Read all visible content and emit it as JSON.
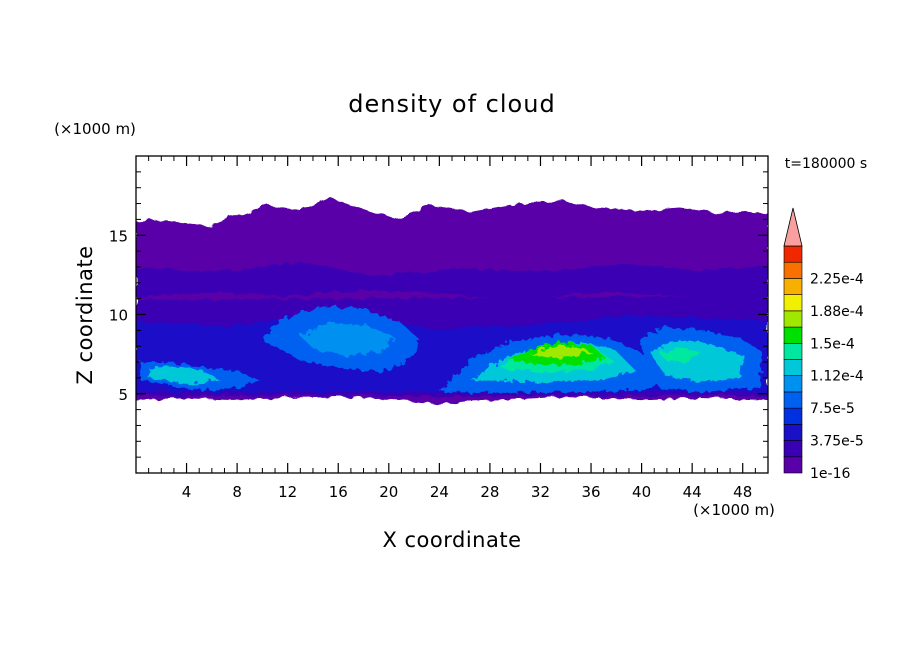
{
  "chart_data": {
    "type": "heatmap",
    "title": "density of cloud",
    "xlabel": "X coordinate",
    "ylabel": "Z coordinate",
    "x_unit": "(×1000 m)",
    "y_unit": "(×1000 m)",
    "time_label": "t=180000 s",
    "xlim": [
      0,
      50
    ],
    "ylim": [
      0,
      20
    ],
    "x_ticks": [
      4,
      8,
      12,
      16,
      20,
      24,
      28,
      32,
      36,
      40,
      44,
      48
    ],
    "y_ticks": [
      5,
      10,
      15
    ],
    "colorbar": {
      "levels": [
        1e-16,
        1.875e-05,
        3.75e-05,
        5.625e-05,
        7.5e-05,
        9.375e-05,
        0.0001125,
        0.00013125,
        0.00015,
        0.00016875,
        0.0001875,
        0.00020625,
        0.000225,
        0.00024375
      ],
      "colors": [
        "#5a00a8",
        "#3a00b4",
        "#1a10c8",
        "#0030e0",
        "#0060f0",
        "#0090f0",
        "#00c8d8",
        "#00e8a0",
        "#00e000",
        "#a0e800",
        "#f0f000",
        "#f8b000",
        "#f87000",
        "#f02800",
        "#f8a0a0"
      ],
      "tick_labels": [
        "1e-16",
        "3.75e-5",
        "7.5e-5",
        "1.12e-4",
        "1.5e-4",
        "1.88e-4",
        "2.25e-4"
      ],
      "extend": "max"
    },
    "regions": [
      {
        "name": "upper-cloud-layer",
        "x": [
          0,
          50
        ],
        "z": [
          5,
          17
        ],
        "level_index": 0
      },
      {
        "name": "left-low-band",
        "x": [
          0,
          10
        ],
        "z": [
          5,
          7
        ],
        "level_index": 5
      },
      {
        "name": "mid-patch",
        "x": [
          10,
          21
        ],
        "z": [
          7,
          11
        ],
        "level_index": 4
      },
      {
        "name": "dome-core",
        "x": [
          28,
          40
        ],
        "z": [
          6,
          8.3
        ],
        "level_index": 8
      },
      {
        "name": "right-patch",
        "x": [
          40,
          48
        ],
        "z": [
          6,
          9
        ],
        "level_index": 6
      }
    ]
  }
}
